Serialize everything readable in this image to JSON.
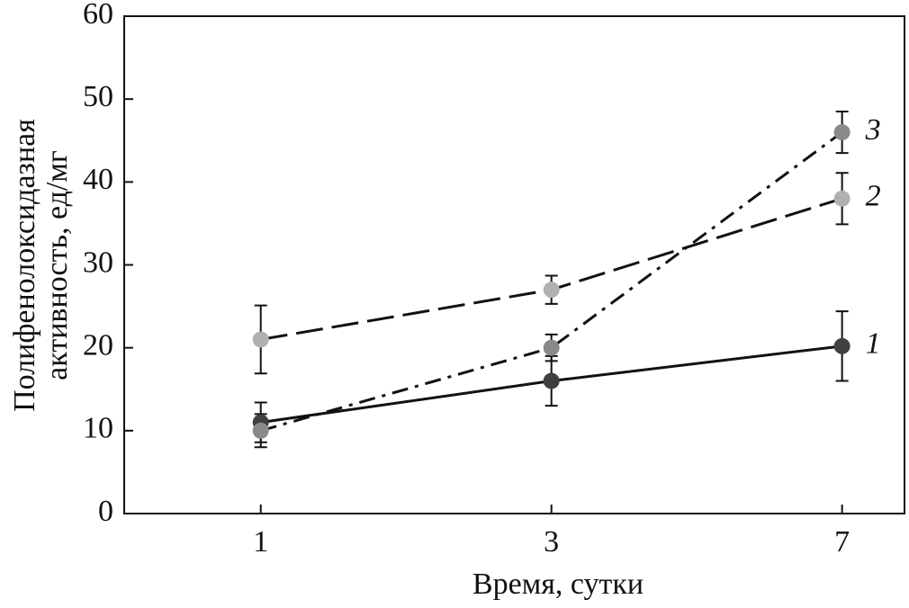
{
  "chart_data": {
    "type": "line",
    "xlabel": "Время, сутки",
    "ylabel": [
      "Полифенолоксидазная",
      "активность, ед/мг"
    ],
    "categories": [
      "1",
      "3",
      "7"
    ],
    "ylim": [
      0,
      60
    ],
    "yticks": [
      0,
      10,
      20,
      30,
      40,
      50,
      60
    ],
    "series": [
      {
        "name": "1",
        "color": "#404040",
        "linestyle": "solid",
        "values": [
          11,
          16,
          20.2
        ],
        "errors": [
          2.4,
          3,
          4.2
        ]
      },
      {
        "name": "2",
        "color": "#b0b0b0",
        "linestyle": "dashed",
        "values": [
          21,
          27,
          38
        ],
        "errors": [
          4.1,
          1.7,
          3.1
        ]
      },
      {
        "name": "3",
        "color": "#8a8a8a",
        "linestyle": "dashdot",
        "values": [
          10,
          20,
          46
        ],
        "errors": [
          2,
          1.6,
          2.5
        ]
      }
    ]
  }
}
